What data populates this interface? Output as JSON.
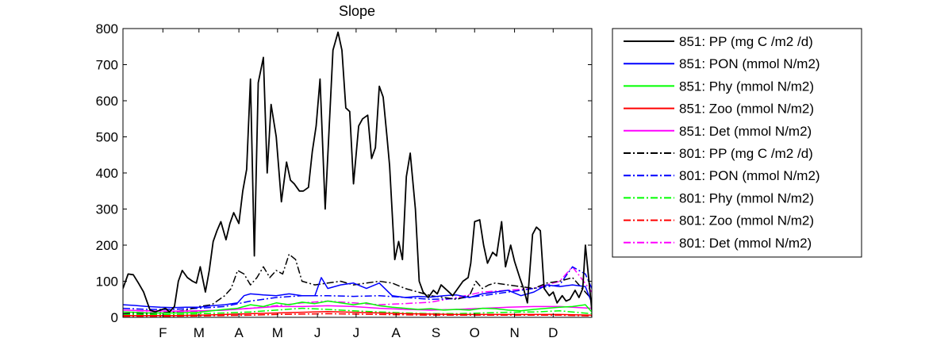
{
  "chart_data": {
    "type": "line",
    "title": "Slope",
    "xlabel": "",
    "ylabel": "",
    "xlim": [
      1,
      365
    ],
    "ylim": [
      0,
      800
    ],
    "yticks": [
      0,
      100,
      200,
      300,
      400,
      500,
      600,
      700,
      800
    ],
    "xticks": [
      {
        "label": "F",
        "day": 32
      },
      {
        "label": "M",
        "day": 60
      },
      {
        "label": "A",
        "day": 91
      },
      {
        "label": "M",
        "day": 121
      },
      {
        "label": "J",
        "day": 152
      },
      {
        "label": "J",
        "day": 182
      },
      {
        "label": "A",
        "day": 213
      },
      {
        "label": "S",
        "day": 244
      },
      {
        "label": "O",
        "day": 274
      },
      {
        "label": "N",
        "day": 305
      },
      {
        "label": "D",
        "day": 335
      }
    ],
    "grid": false,
    "legend_position": "outside-right",
    "series": [
      {
        "name": "851: PP (mg C /m2 /d)",
        "color": "#000000",
        "dash": "solid",
        "x": [
          1,
          5,
          9,
          13,
          17,
          22,
          26,
          30,
          34,
          37,
          41,
          44,
          47,
          51,
          55,
          58,
          61,
          65,
          68,
          71,
          74,
          77,
          81,
          84,
          87,
          91,
          94,
          97,
          100,
          103,
          106,
          110,
          113,
          116,
          120,
          124,
          128,
          131,
          134,
          138,
          141,
          145,
          148,
          151,
          154,
          158,
          161,
          164,
          168,
          171,
          174,
          177,
          180,
          184,
          187,
          191,
          194,
          197,
          200,
          203,
          206,
          208,
          212,
          215,
          218,
          221,
          224,
          228,
          231,
          234,
          238,
          242,
          245,
          248,
          251,
          254,
          257,
          261,
          265,
          269,
          271,
          274,
          278,
          281,
          284,
          288,
          291,
          295,
          298,
          302,
          305,
          309,
          312,
          315,
          319,
          322,
          325,
          328,
          332,
          335,
          338,
          342,
          345,
          348,
          352,
          355,
          358,
          360,
          365
        ],
        "y": [
          80,
          120,
          118,
          95,
          70,
          20,
          15,
          20,
          25,
          15,
          30,
          100,
          130,
          110,
          100,
          95,
          140,
          70,
          130,
          210,
          240,
          265,
          215,
          260,
          290,
          260,
          350,
          410,
          660,
          170,
          650,
          720,
          400,
          590,
          500,
          320,
          430,
          380,
          370,
          350,
          350,
          360,
          460,
          530,
          660,
          300,
          520,
          740,
          790,
          740,
          580,
          570,
          370,
          530,
          550,
          560,
          440,
          470,
          640,
          610,
          500,
          420,
          160,
          210,
          160,
          390,
          455,
          300,
          100,
          70,
          55,
          75,
          65,
          90,
          80,
          70,
          60,
          80,
          100,
          110,
          150,
          265,
          270,
          200,
          150,
          180,
          170,
          265,
          140,
          200,
          155,
          110,
          80,
          40,
          230,
          250,
          240,
          80,
          60,
          70,
          40,
          60,
          45,
          50,
          75,
          55,
          80,
          200,
          20
        ]
      },
      {
        "name": "851: PON (mmol N/m2)",
        "color": "#0000ff",
        "dash": "solid",
        "x": [
          1,
          10,
          20,
          30,
          40,
          50,
          60,
          70,
          80,
          90,
          95,
          100,
          110,
          120,
          130,
          140,
          150,
          155,
          160,
          170,
          180,
          190,
          200,
          210,
          220,
          230,
          240,
          250,
          260,
          270,
          280,
          290,
          300,
          310,
          320,
          330,
          340,
          350,
          360,
          365
        ],
        "y": [
          35,
          33,
          30,
          28,
          27,
          28,
          28,
          32,
          35,
          40,
          60,
          65,
          62,
          60,
          65,
          60,
          60,
          110,
          80,
          90,
          95,
          80,
          95,
          60,
          55,
          58,
          56,
          60,
          62,
          55,
          65,
          70,
          75,
          60,
          70,
          90,
          85,
          90,
          85,
          40
        ]
      },
      {
        "name": "851: Phy (mmol N/m2)",
        "color": "#00ff00",
        "dash": "solid",
        "x": [
          1,
          10,
          20,
          30,
          40,
          50,
          60,
          70,
          80,
          90,
          100,
          110,
          120,
          130,
          140,
          150,
          160,
          170,
          180,
          190,
          200,
          210,
          220,
          230,
          240,
          250,
          260,
          270,
          280,
          290,
          300,
          310,
          320,
          330,
          340,
          350,
          360,
          365
        ],
        "y": [
          15,
          14,
          12,
          12,
          12,
          13,
          14,
          18,
          22,
          25,
          35,
          30,
          40,
          35,
          42,
          38,
          45,
          40,
          35,
          40,
          32,
          28,
          25,
          22,
          24,
          20,
          22,
          20,
          25,
          24,
          20,
          18,
          22,
          25,
          28,
          30,
          35,
          15
        ]
      },
      {
        "name": "851: Zoo (mmol N/m2)",
        "color": "#ff0000",
        "dash": "solid",
        "x": [
          1,
          20,
          40,
          60,
          80,
          100,
          120,
          140,
          160,
          180,
          200,
          220,
          240,
          260,
          280,
          300,
          320,
          340,
          365
        ],
        "y": [
          5,
          5,
          5,
          6,
          8,
          10,
          12,
          14,
          16,
          14,
          12,
          10,
          9,
          8,
          8,
          8,
          8,
          8,
          6
        ]
      },
      {
        "name": "851: Det (mmol N/m2)",
        "color": "#ff00ff",
        "dash": "solid",
        "x": [
          1,
          20,
          40,
          60,
          80,
          100,
          120,
          140,
          160,
          180,
          200,
          220,
          240,
          260,
          280,
          300,
          320,
          340,
          365
        ],
        "y": [
          20,
          18,
          17,
          18,
          20,
          25,
          30,
          30,
          32,
          30,
          25,
          22,
          20,
          22,
          25,
          28,
          30,
          30,
          25
        ]
      },
      {
        "name": "801: PP (mg C /m2 /d)",
        "color": "#000000",
        "dash": "dashdot",
        "x": [
          1,
          10,
          20,
          30,
          40,
          50,
          60,
          70,
          80,
          85,
          90,
          95,
          100,
          105,
          110,
          115,
          120,
          125,
          130,
          135,
          140,
          150,
          160,
          170,
          180,
          190,
          200,
          210,
          220,
          230,
          240,
          250,
          260,
          270,
          275,
          280,
          285,
          290,
          300,
          310,
          320,
          330,
          340,
          350,
          365
        ],
        "y": [
          10,
          12,
          10,
          12,
          15,
          20,
          30,
          35,
          60,
          80,
          130,
          120,
          90,
          110,
          140,
          110,
          130,
          120,
          175,
          160,
          100,
          90,
          95,
          100,
          90,
          95,
          100,
          95,
          80,
          70,
          60,
          55,
          50,
          60,
          100,
          80,
          90,
          95,
          90,
          85,
          80,
          95,
          100,
          110,
          50
        ]
      },
      {
        "name": "801: PON (mmol N/m2)",
        "color": "#0000ff",
        "dash": "dashdot",
        "x": [
          1,
          20,
          40,
          60,
          80,
          100,
          120,
          140,
          160,
          180,
          200,
          220,
          240,
          260,
          280,
          300,
          320,
          340,
          350,
          360,
          365
        ],
        "y": [
          25,
          22,
          22,
          25,
          30,
          45,
          55,
          60,
          60,
          58,
          60,
          55,
          50,
          52,
          60,
          70,
          80,
          90,
          140,
          120,
          80
        ]
      },
      {
        "name": "801: Phy (mmol N/m2)",
        "color": "#00ff00",
        "dash": "dashdot",
        "x": [
          1,
          20,
          40,
          60,
          80,
          100,
          120,
          140,
          160,
          180,
          200,
          220,
          240,
          260,
          280,
          300,
          320,
          340,
          365
        ],
        "y": [
          8,
          8,
          8,
          10,
          12,
          15,
          20,
          25,
          22,
          18,
          15,
          12,
          10,
          10,
          12,
          14,
          15,
          18,
          10
        ]
      },
      {
        "name": "801: Zoo (mmol N/m2)",
        "color": "#ff0000",
        "dash": "dashdot",
        "x": [
          1,
          20,
          40,
          60,
          80,
          100,
          120,
          140,
          160,
          180,
          200,
          220,
          240,
          260,
          280,
          300,
          320,
          340,
          365
        ],
        "y": [
          3,
          3,
          3,
          4,
          5,
          6,
          8,
          9,
          10,
          9,
          8,
          7,
          6,
          6,
          6,
          6,
          6,
          6,
          4
        ]
      },
      {
        "name": "801: Det (mmol N/m2)",
        "color": "#ff00ff",
        "dash": "dashdot",
        "x": [
          1,
          20,
          40,
          60,
          80,
          100,
          120,
          140,
          160,
          180,
          200,
          220,
          240,
          260,
          280,
          300,
          320,
          340,
          350,
          365
        ],
        "y": [
          15,
          14,
          14,
          16,
          20,
          25,
          32,
          40,
          45,
          40,
          35,
          38,
          42,
          55,
          70,
          75,
          80,
          100,
          140,
          70
        ]
      }
    ]
  }
}
